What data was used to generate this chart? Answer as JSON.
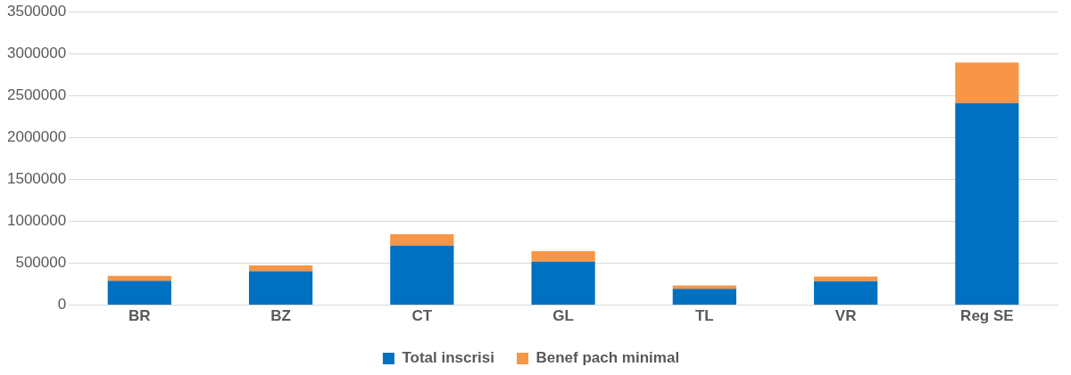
{
  "chart_data": {
    "type": "bar",
    "stacked": true,
    "categories": [
      "BR",
      "BZ",
      "CT",
      "GL",
      "TL",
      "VR",
      "Reg SE"
    ],
    "series": [
      {
        "name": "Total inscrisi",
        "color": "#0070c0",
        "values": [
          290000,
          405000,
          710000,
          520000,
          195000,
          285000,
          2410000
        ]
      },
      {
        "name": "Benef pach minimal",
        "color": "#f79646",
        "values": [
          60000,
          70000,
          135000,
          125000,
          40000,
          55000,
          485000
        ]
      }
    ],
    "ylim": [
      0,
      3500000
    ],
    "yticks": [
      0,
      500000,
      1000000,
      1500000,
      2000000,
      2500000,
      3000000,
      3500000
    ],
    "grid": "y",
    "legend": "bottom"
  }
}
